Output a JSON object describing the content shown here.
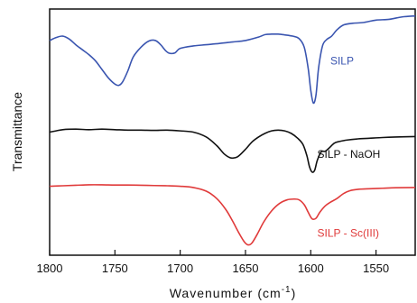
{
  "chart_data": {
    "type": "line",
    "xlabel": "Wavenumber (cm",
    "xlabel_superscript": "-1",
    "xlabel_suffix": ")",
    "ylabel": "Transmittance",
    "xlim": [
      1800,
      1520
    ],
    "x_reversed": true,
    "x_ticks": [
      1800,
      1750,
      1700,
      1650,
      1600,
      1550
    ],
    "y_ticks": false,
    "grid": false,
    "ylim": [
      0,
      10
    ],
    "series": [
      {
        "name": "SILP",
        "color": "#3a55b0",
        "points": [
          [
            1800,
            8.72
          ],
          [
            1795,
            8.84
          ],
          [
            1790,
            8.9
          ],
          [
            1785,
            8.78
          ],
          [
            1780,
            8.55
          ],
          [
            1775,
            8.35
          ],
          [
            1770,
            8.15
          ],
          [
            1765,
            7.9
          ],
          [
            1760,
            7.55
          ],
          [
            1755,
            7.2
          ],
          [
            1750,
            6.95
          ],
          [
            1747,
            6.9
          ],
          [
            1744,
            7.05
          ],
          [
            1740,
            7.5
          ],
          [
            1736,
            8.05
          ],
          [
            1730,
            8.45
          ],
          [
            1724,
            8.7
          ],
          [
            1719,
            8.72
          ],
          [
            1715,
            8.55
          ],
          [
            1711,
            8.3
          ],
          [
            1708,
            8.2
          ],
          [
            1704,
            8.22
          ],
          [
            1700,
            8.4
          ],
          [
            1690,
            8.5
          ],
          [
            1680,
            8.55
          ],
          [
            1670,
            8.6
          ],
          [
            1660,
            8.66
          ],
          [
            1650,
            8.72
          ],
          [
            1640,
            8.86
          ],
          [
            1635,
            8.96
          ],
          [
            1630,
            8.98
          ],
          [
            1625,
            8.98
          ],
          [
            1620,
            8.95
          ],
          [
            1614,
            8.9
          ],
          [
            1609,
            8.8
          ],
          [
            1605,
            8.45
          ],
          [
            1602,
            7.6
          ],
          [
            1600,
            6.7
          ],
          [
            1598,
            6.18
          ],
          [
            1596,
            6.5
          ],
          [
            1594,
            7.6
          ],
          [
            1591,
            8.5
          ],
          [
            1588,
            8.75
          ],
          [
            1584,
            8.9
          ],
          [
            1580,
            9.15
          ],
          [
            1575,
            9.35
          ],
          [
            1568,
            9.42
          ],
          [
            1560,
            9.45
          ],
          [
            1550,
            9.55
          ],
          [
            1540,
            9.58
          ],
          [
            1530,
            9.68
          ],
          [
            1520,
            9.72
          ]
        ]
      },
      {
        "name": "SILP - NaOH",
        "color": "#111111",
        "points": [
          [
            1800,
            5.0
          ],
          [
            1795,
            5.05
          ],
          [
            1790,
            5.1
          ],
          [
            1780,
            5.12
          ],
          [
            1770,
            5.1
          ],
          [
            1760,
            5.12
          ],
          [
            1750,
            5.1
          ],
          [
            1740,
            5.08
          ],
          [
            1730,
            5.08
          ],
          [
            1720,
            5.07
          ],
          [
            1710,
            5.08
          ],
          [
            1700,
            5.05
          ],
          [
            1690,
            5.0
          ],
          [
            1680,
            4.8
          ],
          [
            1672,
            4.45
          ],
          [
            1666,
            4.1
          ],
          [
            1661,
            3.95
          ],
          [
            1656,
            4.0
          ],
          [
            1650,
            4.3
          ],
          [
            1645,
            4.6
          ],
          [
            1640,
            4.8
          ],
          [
            1635,
            4.95
          ],
          [
            1630,
            5.05
          ],
          [
            1625,
            5.08
          ],
          [
            1620,
            5.05
          ],
          [
            1615,
            4.95
          ],
          [
            1610,
            4.75
          ],
          [
            1606,
            4.5
          ],
          [
            1603,
            4.05
          ],
          [
            1601,
            3.6
          ],
          [
            1599,
            3.38
          ],
          [
            1597,
            3.45
          ],
          [
            1595,
            3.85
          ],
          [
            1592,
            4.2
          ],
          [
            1589,
            4.22
          ],
          [
            1586,
            4.35
          ],
          [
            1582,
            4.55
          ],
          [
            1578,
            4.62
          ],
          [
            1572,
            4.68
          ],
          [
            1565,
            4.72
          ],
          [
            1555,
            4.75
          ],
          [
            1545,
            4.78
          ],
          [
            1535,
            4.8
          ],
          [
            1520,
            4.82
          ]
        ]
      },
      {
        "name": "SILP - Sc(III)",
        "color": "#e03a3a",
        "points": [
          [
            1800,
            2.8
          ],
          [
            1790,
            2.82
          ],
          [
            1780,
            2.84
          ],
          [
            1770,
            2.86
          ],
          [
            1760,
            2.86
          ],
          [
            1750,
            2.85
          ],
          [
            1740,
            2.85
          ],
          [
            1730,
            2.84
          ],
          [
            1720,
            2.83
          ],
          [
            1710,
            2.82
          ],
          [
            1700,
            2.8
          ],
          [
            1690,
            2.75
          ],
          [
            1680,
            2.6
          ],
          [
            1672,
            2.3
          ],
          [
            1665,
            1.85
          ],
          [
            1660,
            1.4
          ],
          [
            1655,
            0.9
          ],
          [
            1651,
            0.55
          ],
          [
            1648,
            0.42
          ],
          [
            1645,
            0.5
          ],
          [
            1641,
            0.85
          ],
          [
            1636,
            1.35
          ],
          [
            1630,
            1.8
          ],
          [
            1624,
            2.1
          ],
          [
            1618,
            2.25
          ],
          [
            1613,
            2.28
          ],
          [
            1609,
            2.25
          ],
          [
            1605,
            2.05
          ],
          [
            1602,
            1.75
          ],
          [
            1599,
            1.48
          ],
          [
            1596,
            1.5
          ],
          [
            1593,
            1.75
          ],
          [
            1589,
            2.0
          ],
          [
            1585,
            2.15
          ],
          [
            1580,
            2.3
          ],
          [
            1575,
            2.5
          ],
          [
            1570,
            2.62
          ],
          [
            1563,
            2.68
          ],
          [
            1555,
            2.7
          ],
          [
            1545,
            2.72
          ],
          [
            1535,
            2.74
          ],
          [
            1520,
            2.75
          ]
        ]
      }
    ],
    "annotations": [
      {
        "text": "SILP",
        "series": 0,
        "x": 1585,
        "y": 7.75
      },
      {
        "text": "SILP - NaOH",
        "series": 1,
        "x": 1595,
        "y": 3.95
      },
      {
        "text": "SILP - Sc(III)",
        "series": 2,
        "x": 1595,
        "y": 0.75
      }
    ]
  }
}
